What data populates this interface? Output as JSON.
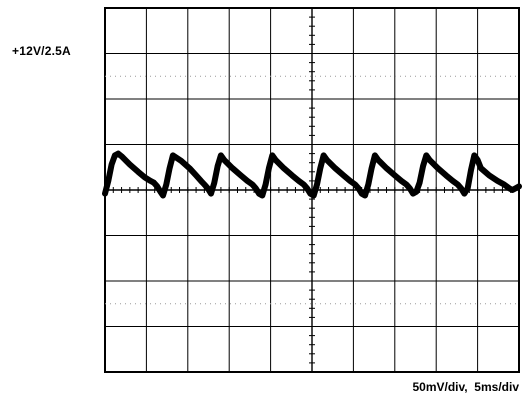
{
  "labels": {
    "channel": "+12V/2.5A",
    "scale": "50mV/div,  5ms/div"
  },
  "colors": {
    "trace": "#000000",
    "grid": "#000000",
    "dotted": "#9a9a9a"
  },
  "chart_data": {
    "type": "line",
    "title": "",
    "xlabel": "",
    "ylabel": "",
    "grid": true,
    "xlim": [
      0,
      50
    ],
    "ylim": [
      -200,
      200
    ],
    "x_unit": "ms",
    "y_unit": "mV",
    "series": [
      {
        "values_x": [
          0,
          0.4,
          0.8,
          1.2,
          1.6,
          2.0,
          3.0,
          4.0,
          4.8,
          5.5,
          5.9,
          6.3,
          6.7,
          7.0,
          7.4,
          7.8,
          8.2,
          9.2,
          10.2,
          11.0,
          11.6,
          12.0,
          12.4,
          12.8,
          13.2,
          13.6,
          14.0,
          14.4,
          15.4,
          16.4,
          17.2,
          17.8,
          18.2,
          18.6,
          19.0,
          19.4,
          19.8,
          20.2,
          20.6,
          21.6,
          22.6,
          23.4,
          24.0,
          24.4,
          24.8,
          25.2,
          25.6,
          26.0,
          26.4,
          26.8,
          27.8,
          28.8,
          29.6,
          30.2,
          30.6,
          31.0,
          31.4,
          31.8,
          32.2,
          32.6,
          33.0,
          34.0,
          35.0,
          35.8,
          36.4,
          36.8,
          37.2,
          37.6,
          38.0,
          38.4,
          38.8,
          39.2,
          40.2,
          41.2,
          42.0,
          42.6,
          43.0,
          43.4,
          43.8,
          44.2,
          44.6,
          45.0,
          45.4,
          46.4,
          47.4,
          48.2,
          48.8,
          49.2,
          49.6,
          50.0
        ],
        "values_y": [
          -4,
          10,
          28,
          38,
          40,
          37,
          28,
          20,
          14,
          10,
          8,
          4,
          -2,
          -6,
          6,
          24,
          38,
          32,
          24,
          16,
          10,
          6,
          2,
          -4,
          8,
          26,
          38,
          33,
          24,
          16,
          10,
          6,
          2,
          -4,
          -6,
          6,
          24,
          38,
          33,
          24,
          16,
          10,
          6,
          2,
          -4,
          -6,
          6,
          24,
          38,
          33,
          24,
          16,
          10,
          6,
          2,
          -4,
          -6,
          6,
          24,
          38,
          33,
          24,
          16,
          10,
          6,
          2,
          -4,
          -2,
          8,
          26,
          38,
          33,
          24,
          16,
          10,
          6,
          2,
          -4,
          2,
          22,
          38,
          33,
          24,
          16,
          10,
          6,
          2,
          0,
          2,
          4
        ]
      }
    ]
  }
}
